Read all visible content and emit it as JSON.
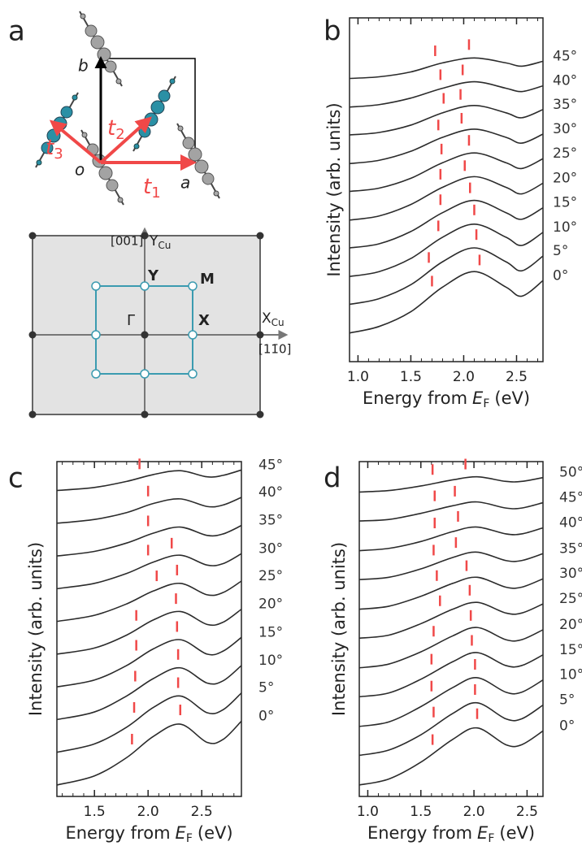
{
  "panel_a": {
    "label": "a",
    "cell_axes": {
      "b": "b",
      "o": "o",
      "a": "a"
    },
    "vectors": [
      {
        "symbol": "t",
        "index": "1"
      },
      {
        "symbol": "t",
        "index": "2"
      },
      {
        "symbol": "t",
        "index": "3"
      }
    ],
    "zone": {
      "y_direction": "[001]",
      "y_axis": {
        "symbol": "Y",
        "index": "Cu"
      },
      "x_axis": {
        "symbol": "X",
        "index": "Cu"
      },
      "x_direction": "[11̄0]",
      "points": {
        "gamma": "Γ",
        "y": "Y",
        "m": "M",
        "x": "X"
      }
    }
  },
  "chart_data": [
    {
      "type": "line",
      "label": "b",
      "xlabel": [
        "Energy from",
        "E",
        "F",
        "(eV)"
      ],
      "ylabel": "Intensity (arb. units)",
      "color": "#2b2b2b",
      "marker_color": "#f04848",
      "xlim": [
        0.92,
        2.75
      ],
      "xticks": [
        {
          "value": 1,
          "label": "1.0"
        },
        1.5,
        {
          "value": 2,
          "label": "2.0"
        },
        2.5
      ],
      "ylim": [
        0,
        42
      ],
      "x": [
        0.92,
        1.2,
        1.5,
        1.8,
        2.1,
        2.4,
        2.55,
        2.75
      ],
      "series": [
        {
          "name": "0°",
          "values": [
            3.5,
            4.3,
            6.1,
            9.1,
            11.0,
            9.1,
            8.0,
            9.9
          ],
          "markers": [
            1.7,
            2.15
          ]
        },
        {
          "name": "5°",
          "values": [
            7.0,
            7.7,
            9.4,
            12.2,
            13.9,
            12.2,
            11.1,
            12.9
          ],
          "markers": [
            1.67,
            2.12
          ]
        },
        {
          "name": "10°",
          "values": [
            10.4,
            11.0,
            12.6,
            15.2,
            16.8,
            15.2,
            14.2,
            15.8
          ],
          "markers": [
            1.76,
            2.1
          ]
        },
        {
          "name": "15°",
          "values": [
            13.9,
            14.4,
            15.9,
            18.2,
            19.7,
            18.2,
            17.4,
            18.8
          ],
          "markers": [
            1.78,
            2.06
          ]
        },
        {
          "name": "20°",
          "values": [
            17.3,
            17.8,
            19.2,
            21.3,
            22.6,
            21.3,
            20.5,
            21.8
          ],
          "markers": [
            1.78,
            2.01
          ]
        },
        {
          "name": "25°",
          "values": [
            20.8,
            21.2,
            22.4,
            24.3,
            25.5,
            24.3,
            23.6,
            24.8
          ],
          "markers": [
            1.79,
            2.05
          ]
        },
        {
          "name": "30°",
          "values": [
            24.2,
            24.6,
            25.7,
            27.4,
            28.4,
            27.4,
            26.7,
            27.8
          ],
          "markers": [
            1.76,
            1.98
          ]
        },
        {
          "name": "35°",
          "values": [
            27.7,
            28.0,
            28.9,
            30.4,
            31.3,
            30.4,
            29.8,
            30.8
          ],
          "markers": [
            1.81,
            1.97
          ]
        },
        {
          "name": "40°",
          "values": [
            31.1,
            31.4,
            32.2,
            33.4,
            34.2,
            33.4,
            33.0,
            33.7
          ],
          "markers": [
            1.78,
            1.99
          ]
        },
        {
          "name": "45°",
          "values": [
            34.6,
            34.8,
            35.4,
            36.5,
            37.1,
            36.5,
            36.1,
            36.7
          ],
          "markers": [
            1.73,
            2.05
          ]
        }
      ]
    },
    {
      "type": "line",
      "label": "c",
      "xlabel": [
        "Energy from",
        "E",
        "F",
        "(eV)"
      ],
      "ylabel": "Intensity (arb. units)",
      "color": "#2b2b2b",
      "marker_color": "#f04848",
      "xlim": [
        1.15,
        2.87
      ],
      "xticks": [
        1.5,
        {
          "value": 2,
          "label": "2.0"
        },
        2.5
      ],
      "ylim": [
        0,
        44
      ],
      "x": [
        1.15,
        1.5,
        1.8,
        2.05,
        2.3,
        2.55,
        2.7,
        2.87
      ],
      "series": [
        {
          "name": "0°",
          "values": [
            1.5,
            2.7,
            5.1,
            7.9,
            9.5,
            7.1,
            7.5,
            9.9
          ],
          "markers": [
            1.85,
            2.3
          ]
        },
        {
          "name": "5°",
          "values": [
            5.8,
            6.9,
            9.1,
            11.7,
            13.2,
            11.0,
            11.4,
            13.6
          ],
          "markers": [
            1.87,
            2.28
          ]
        },
        {
          "name": "10°",
          "values": [
            10.1,
            11.1,
            13.2,
            15.5,
            16.9,
            14.9,
            15.2,
            17.2
          ],
          "markers": [
            1.88,
            2.28
          ]
        },
        {
          "name": "15°",
          "values": [
            14.4,
            15.3,
            17.2,
            19.4,
            20.6,
            18.7,
            19.1,
            20.9
          ],
          "markers": [
            1.89,
            2.27
          ]
        },
        {
          "name": "20°",
          "values": [
            18.7,
            19.5,
            21.2,
            23.2,
            24.3,
            22.6,
            22.9,
            24.6
          ],
          "markers": [
            1.89,
            2.26
          ]
        },
        {
          "name": "25°",
          "values": [
            23.0,
            23.8,
            25.3,
            27.0,
            28.0,
            26.5,
            26.8,
            28.3
          ],
          "markers": [
            2.08,
            2.27
          ]
        },
        {
          "name": "30°",
          "values": [
            27.3,
            28.0,
            29.3,
            30.8,
            31.7,
            30.4,
            30.6,
            31.9
          ],
          "markers": [
            2.0,
            2.22
          ]
        },
        {
          "name": "35°",
          "values": [
            31.6,
            32.2,
            33.3,
            34.6,
            35.4,
            34.3,
            34.5,
            35.6
          ],
          "markers": [
            2.0
          ]
        },
        {
          "name": "40°",
          "values": [
            35.9,
            36.4,
            37.3,
            38.5,
            39.1,
            38.1,
            38.3,
            39.3
          ],
          "markers": [
            2.0
          ]
        },
        {
          "name": "45°",
          "values": [
            40.2,
            40.6,
            41.4,
            42.3,
            42.8,
            42.0,
            42.2,
            42.9
          ],
          "markers": [
            1.92
          ]
        }
      ]
    },
    {
      "type": "line",
      "label": "d",
      "xlabel": [
        "Energy from",
        "E",
        "F",
        "(eV)"
      ],
      "ylabel": "Intensity (arb. units)",
      "color": "#2b2b2b",
      "marker_color": "#f04848",
      "xlim": [
        0.92,
        2.65
      ],
      "xticks": [
        {
          "value": 1,
          "label": "1.0"
        },
        1.5,
        {
          "value": 2,
          "label": "2.0"
        },
        2.5
      ],
      "ylim": [
        0,
        44
      ],
      "x": [
        0.92,
        1.2,
        1.5,
        1.8,
        2.03,
        2.3,
        2.45,
        2.65
      ],
      "series": [
        {
          "name": "0°",
          "values": [
            1.5,
            2.3,
            4.5,
            7.5,
            9.0,
            6.8,
            6.8,
            8.6
          ],
          "markers": [
            1.61,
            2.03
          ]
        },
        {
          "name": "5°",
          "values": [
            5.4,
            6.1,
            8.1,
            10.9,
            12.3,
            10.2,
            10.2,
            12.0
          ],
          "markers": [
            1.62,
            2.01
          ]
        },
        {
          "name": "10°",
          "values": [
            9.2,
            9.8,
            11.8,
            14.3,
            15.6,
            13.7,
            13.7,
            15.3
          ],
          "markers": [
            1.6,
            2.01
          ]
        },
        {
          "name": "15°",
          "values": [
            13.1,
            13.6,
            15.4,
            17.7,
            18.9,
            17.2,
            17.2,
            18.6
          ],
          "markers": [
            1.6,
            1.98
          ]
        },
        {
          "name": "20°",
          "values": [
            16.9,
            17.4,
            19.0,
            21.1,
            22.2,
            20.6,
            20.6,
            21.9
          ],
          "markers": [
            1.62,
            1.97
          ]
        },
        {
          "name": "25°",
          "values": [
            20.8,
            21.2,
            22.7,
            24.6,
            25.5,
            24.1,
            24.1,
            25.3
          ],
          "markers": [
            1.68,
            1.96
          ]
        },
        {
          "name": "30°",
          "values": [
            24.6,
            25.0,
            26.3,
            28.0,
            28.8,
            27.5,
            27.5,
            28.6
          ],
          "markers": [
            1.65,
            1.93
          ]
        },
        {
          "name": "35°",
          "values": [
            28.5,
            28.8,
            29.9,
            31.4,
            32.1,
            31.0,
            31.0,
            31.9
          ],
          "markers": [
            1.62,
            1.83
          ]
        },
        {
          "name": "40°",
          "values": [
            32.3,
            32.6,
            33.5,
            34.8,
            35.4,
            34.5,
            34.5,
            35.3
          ],
          "markers": [
            1.63,
            1.85
          ]
        },
        {
          "name": "45°",
          "values": [
            36.2,
            36.4,
            37.2,
            38.2,
            38.7,
            37.9,
            37.9,
            38.6
          ],
          "markers": [
            1.63,
            1.82
          ]
        },
        {
          "name": "50°",
          "values": [
            40.0,
            40.2,
            40.8,
            41.6,
            42.0,
            41.4,
            41.4,
            41.9
          ],
          "markers": [
            1.61,
            1.92
          ]
        }
      ]
    }
  ]
}
